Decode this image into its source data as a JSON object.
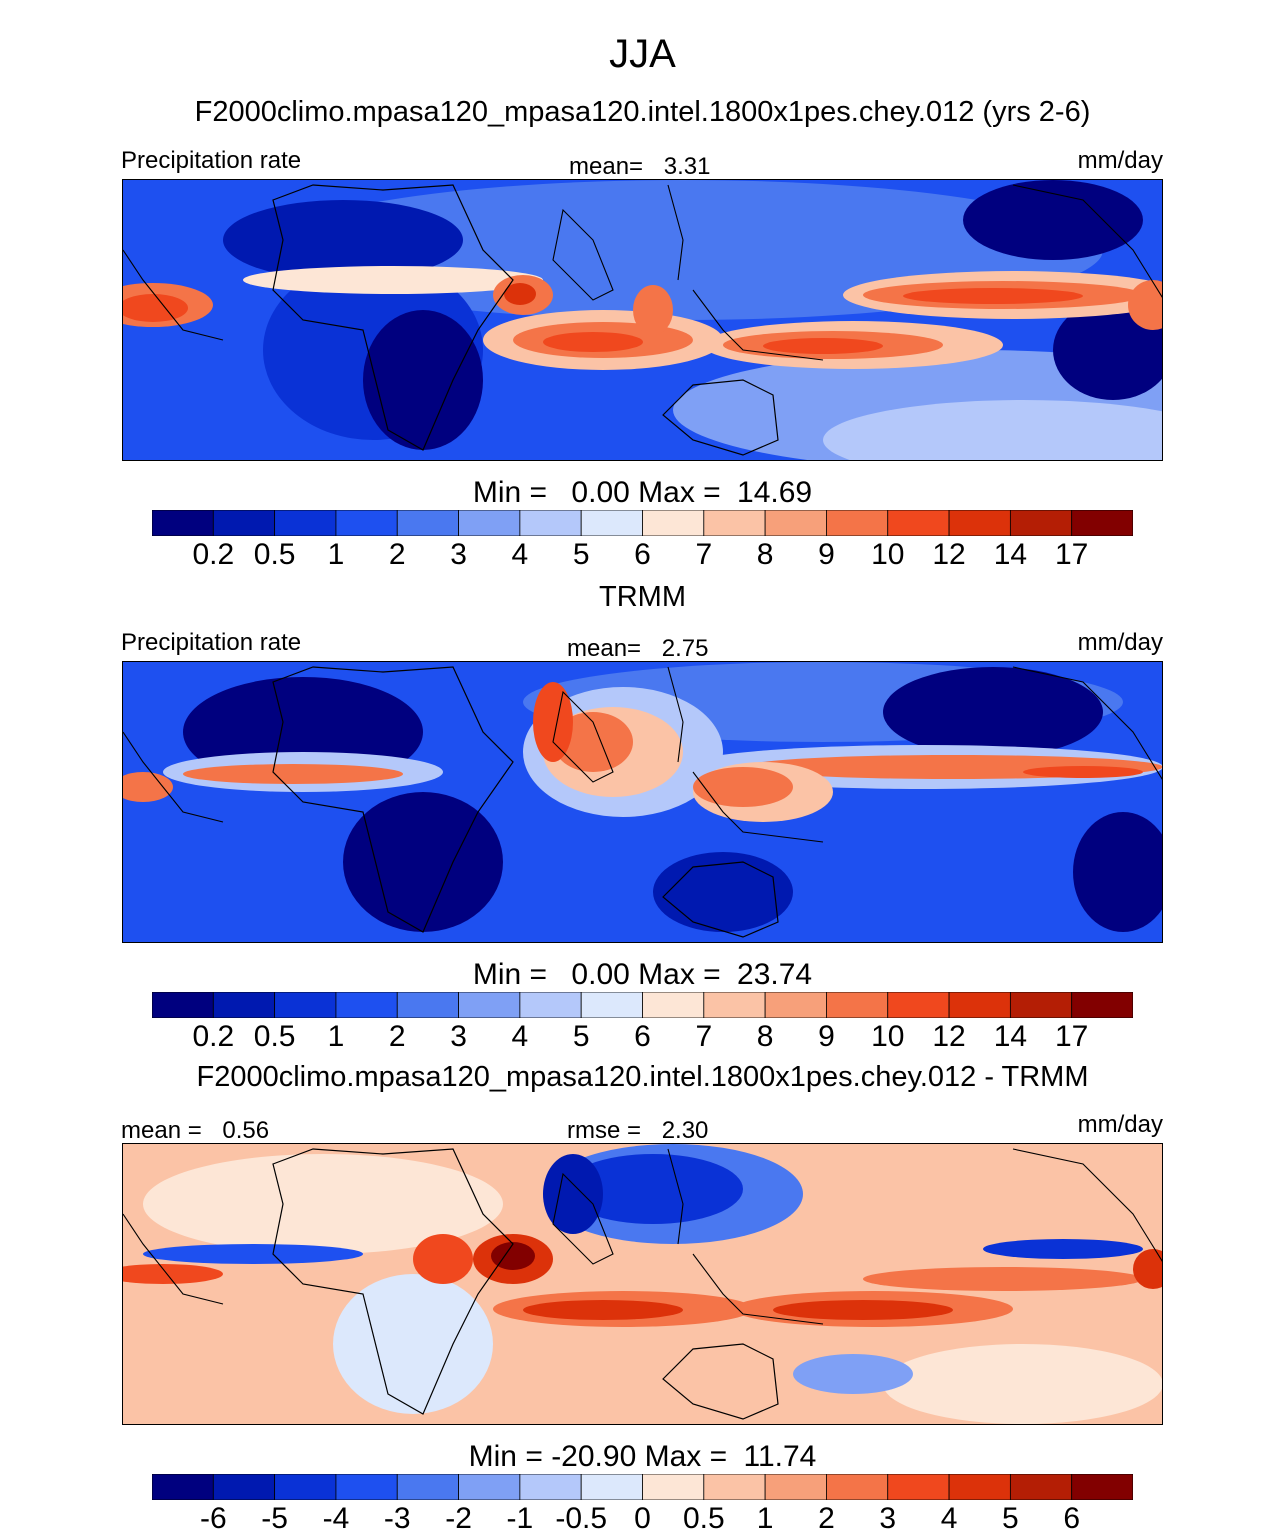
{
  "figure": {
    "title": "JJA",
    "units": "mm/day"
  },
  "chart_data": [
    {
      "type": "heatmap",
      "title": "F2000climo.mpasa120_mpasa120.intel.1800x1pes.chey.012 (yrs 2-6)",
      "variable": "Precipitation rate",
      "units": "mm/day",
      "mean_label": "mean=",
      "mean": "3.31",
      "min_label": "Min =",
      "min": "0.00",
      "max_label": "Max =",
      "max": "14.69",
      "levels": [
        "0.2",
        "0.5",
        "1",
        "2",
        "3",
        "4",
        "5",
        "6",
        "7",
        "8",
        "9",
        "10",
        "12",
        "14",
        "17"
      ],
      "lon_range": [
        0,
        360
      ],
      "lat_range": [
        -38,
        38
      ]
    },
    {
      "type": "heatmap",
      "title": "TRMM",
      "variable": "Precipitation rate",
      "units": "mm/day",
      "mean_label": "mean=",
      "mean": "2.75",
      "min_label": "Min =",
      "min": "0.00",
      "max_label": "Max =",
      "max": "23.74",
      "levels": [
        "0.2",
        "0.5",
        "1",
        "2",
        "3",
        "4",
        "5",
        "6",
        "7",
        "8",
        "9",
        "10",
        "12",
        "14",
        "17"
      ],
      "lon_range": [
        0,
        360
      ],
      "lat_range": [
        -38,
        38
      ]
    },
    {
      "type": "heatmap",
      "title": "F2000climo.mpasa120_mpasa120.intel.1800x1pes.chey.012 - TRMM",
      "units": "mm/day",
      "mean_label": "mean =",
      "mean": "0.56",
      "rmse_label": "rmse =",
      "rmse": "2.30",
      "min_label": "Min =",
      "min": "-20.90",
      "max_label": "Max =",
      "max": "11.74",
      "levels": [
        "-6",
        "-5",
        "-4",
        "-3",
        "-2",
        "-1",
        "-0.5",
        "0",
        "0.5",
        "1",
        "2",
        "3",
        "4",
        "5",
        "6"
      ],
      "lon_range": [
        0,
        360
      ],
      "lat_range": [
        -38,
        38
      ]
    }
  ],
  "colors": {
    "palette": [
      "#00007f",
      "#0019b0",
      "#0a32d6",
      "#1e50f0",
      "#4a78f0",
      "#7fa0f5",
      "#b4c8fa",
      "#dce8fc",
      "#fde6d6",
      "#fbc3a6",
      "#f7a07a",
      "#f47448",
      "#f0481e",
      "#dc320a",
      "#b41e05",
      "#820000"
    ]
  },
  "panel_text": [
    {
      "left": "Precipitation rate",
      "right": "mm/day"
    },
    {
      "left": "Precipitation rate",
      "right": "mm/day"
    },
    {
      "left": "",
      "right": "mm/day"
    }
  ]
}
